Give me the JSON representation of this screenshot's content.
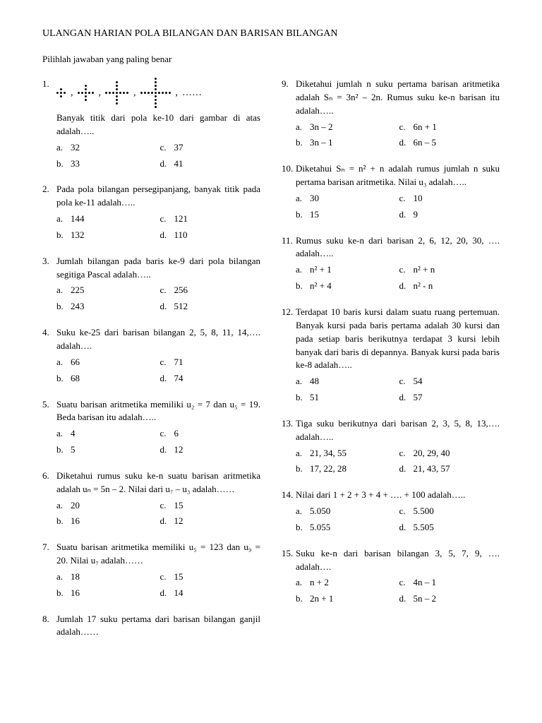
{
  "title": "ULANGAN HARIAN POLA BILANGAN DAN BARISAN BILANGAN",
  "instruction": "Pilihlah jawaban yang paling benar",
  "leftQuestions": [
    {
      "num": "1.",
      "hasPattern": true,
      "text": "Banyak titik dari pola ke-10 dari gambar di atas adalah…..",
      "a": "32",
      "b": "33",
      "c": "37",
      "d": "41"
    },
    {
      "num": "2.",
      "text": "Pada pola bilangan persegipanjang, banyak titik pada pola ke-11 adalah…..",
      "a": "144",
      "b": "132",
      "c": "121",
      "d": "110"
    },
    {
      "num": "3.",
      "text": "Jumlah bilangan pada baris ke-9 dari pola bilangan segitiga Pascal adalah…..",
      "a": "225",
      "b": "243",
      "c": "256",
      "d": "512"
    },
    {
      "num": "4.",
      "text": "Suku ke-25 dari barisan bilangan 2, 5, 8, 11, 14,…. adalah….",
      "a": "66",
      "b": "68",
      "c": "71",
      "d": "74"
    },
    {
      "num": "5.",
      "text": "Suatu barisan aritmetika memiliki u₂ = 7 dan u₅ = 19. Beda barisan itu adalah…..",
      "a": "4",
      "b": "5",
      "c": "6",
      "d": "12"
    },
    {
      "num": "6.",
      "text": "Diketahui rumus suku ke-n suatu barisan aritmetika adalah uₙ = 5n – 2. Nilai dari u₇ – u₃ adalah……",
      "a": "20",
      "b": "16",
      "c": "15",
      "d": "12"
    },
    {
      "num": "7.",
      "text": "Suatu barisan aritmetika memiliki u₅ = 123 dan u₉ = 20. Nilai u₇ adalah……",
      "a": "18",
      "b": "16",
      "c": "15",
      "d": "14"
    },
    {
      "num": "8.",
      "text": "Jumlah 17 suku pertama dari barisan bilangan ganjil adalah……",
      "noChoices": true
    }
  ],
  "rightQuestions": [
    {
      "num": "9.",
      "text": "Diketahui jumlah n suku pertama barisan aritmetika adalah Sₙ = 3n² – 2n. Rumus suku ke-n barisan itu adalah…..",
      "a": "3n – 2",
      "b": "3n – 1",
      "c": "6n + 1",
      "d": "6n – 5"
    },
    {
      "num": "10.",
      "text": "Diketahui Sₙ = n² + n adalah rumus jumlah n suku pertama barisan aritmetika. Nilai u₃ adalah…..",
      "a": "30",
      "b": "15",
      "c": "10",
      "d": "9"
    },
    {
      "num": "11.",
      "text": "Rumus suku ke-n dari barisan 2, 6, 12, 20, 30, …. adalah…..",
      "a": "n² + 1",
      "b": "n² + 4",
      "c": "n² + n",
      "d": "n² - n"
    },
    {
      "num": "12.",
      "text": "Terdapat 10 baris kursi dalam suatu ruang pertemuan. Banyak kursi pada baris pertama adalah 30 kursi dan pada setiap baris berikutnya terdapat 3 kursi lebih banyak dari baris di depannya. Banyak kursi pada baris ke-8 adalah…..",
      "a": "48",
      "b": "51",
      "c": "54",
      "d": "57"
    },
    {
      "num": "13.",
      "text": "Tiga suku berikutnya dari barisan 2, 3, 5, 8, 13,…. adalah…..",
      "a": "21, 34, 55",
      "b": "17, 22, 28",
      "c": "20, 29, 40",
      "d": "21, 43, 57"
    },
    {
      "num": "14.",
      "text": "Nilai dari 1 + 2 + 3 + 4 + …. + 100 adalah…..",
      "a": "5.050",
      "b": "5.055",
      "c": "5.500",
      "d": "5.505"
    },
    {
      "num": "15.",
      "text": "Suku ke-n dari barisan bilangan 3, 5, 7, 9, …. adalah….",
      "a": "n + 2",
      "b": "2n + 1",
      "c": "4n – 1",
      "d": "5n – 2"
    }
  ]
}
